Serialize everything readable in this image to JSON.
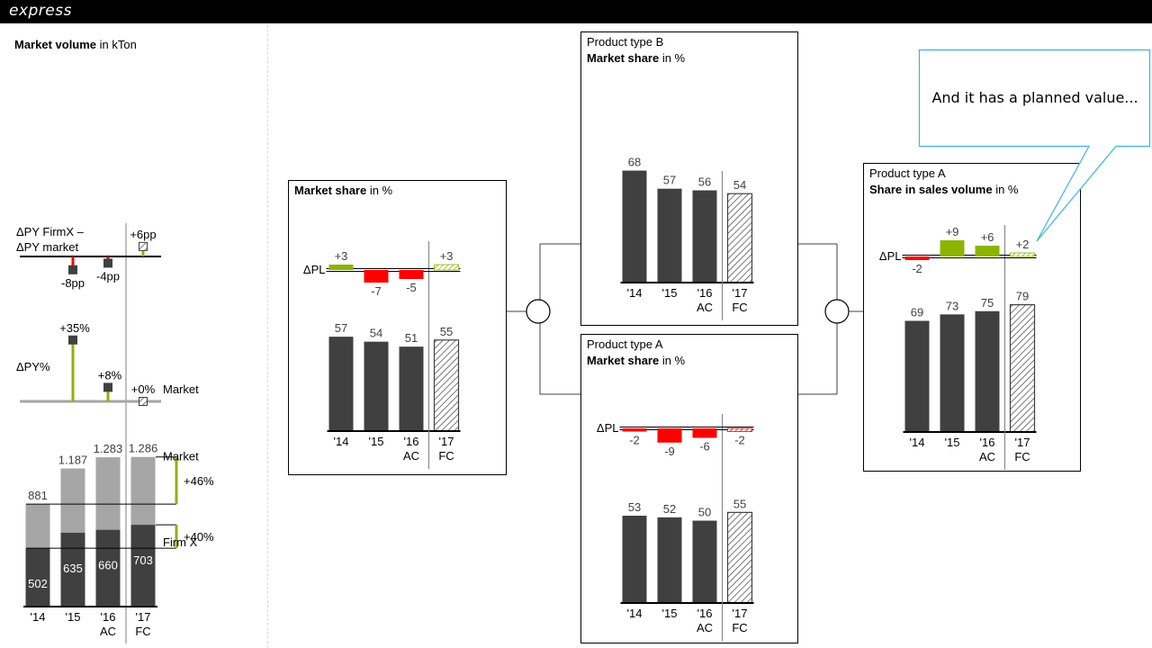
{
  "app": {
    "brand": "express",
    "callout_text": "And it has a planned value...",
    "colors": {
      "dark": "#404040",
      "light": "#a6a6a6",
      "positive": "#8cb400",
      "negative": "#ff0000",
      "frame": "#000000",
      "callout": "#3cb4dc"
    }
  },
  "chart_data": [
    {
      "id": "market_volume",
      "type": "bar",
      "title_bold": "Market volume",
      "title_rest": " in kTon",
      "categories": [
        "'14",
        "'15",
        "'16",
        "'17"
      ],
      "category_sublabels": [
        "",
        "",
        "AC",
        "FC"
      ],
      "firm_values": [
        502,
        635,
        660,
        703
      ],
      "market_values": [
        881,
        1187,
        1283,
        1286
      ],
      "firm_labels": [
        "502",
        "635",
        "660",
        "703"
      ],
      "market_labels": [
        "881",
        "1.187",
        "1.283",
        "1.286"
      ],
      "series_labels": {
        "market": "Market",
        "firm": "Firm X"
      },
      "growth_market": "+46%",
      "growth_firm": "+40%",
      "delta_diff": {
        "label_line1": "ΔPY FirmX –",
        "label_line2": "ΔPY market",
        "values": [
          -8,
          -4,
          6
        ],
        "value_labels": [
          "-8pp",
          "-4pp",
          "+6pp"
        ]
      },
      "delta_market": {
        "label": "ΔPY%",
        "series_label": "Market",
        "values": [
          35,
          8,
          0
        ],
        "value_labels": [
          "+35%",
          "+8%",
          "+0%"
        ]
      }
    },
    {
      "id": "market_share_total",
      "type": "bar",
      "title_bold": "Market share",
      "title_rest": " in %",
      "categories": [
        "'14",
        "'15",
        "'16",
        "'17"
      ],
      "category_sublabels": [
        "",
        "",
        "AC",
        "FC"
      ],
      "values": [
        57,
        54,
        51,
        55
      ],
      "delta_label": "ΔPL",
      "deltas": [
        3,
        -7,
        -5,
        3
      ],
      "delta_labels": [
        "+3",
        "-7",
        "-5",
        "+3"
      ]
    },
    {
      "id": "market_share_b",
      "type": "bar",
      "title_line1": "Product type B",
      "title_bold": "Market share",
      "title_rest": " in %",
      "categories": [
        "'14",
        "'15",
        "'16",
        "'17"
      ],
      "category_sublabels": [
        "",
        "",
        "AC",
        "FC"
      ],
      "values": [
        68,
        57,
        56,
        54
      ]
    },
    {
      "id": "market_share_a",
      "type": "bar",
      "title_line1": "Product type A",
      "title_bold": "Market share",
      "title_rest": " in %",
      "categories": [
        "'14",
        "'15",
        "'16",
        "'17"
      ],
      "category_sublabels": [
        "",
        "",
        "AC",
        "FC"
      ],
      "values": [
        53,
        52,
        50,
        55
      ],
      "delta_label": "ΔPL",
      "deltas": [
        -2,
        -9,
        -6,
        -2
      ],
      "delta_labels": [
        "-2",
        "-9",
        "-6",
        "-2"
      ]
    },
    {
      "id": "sales_share_a",
      "type": "bar",
      "title_line1": "Product type A",
      "title_bold": "Share in sales volume",
      "title_rest": " in %",
      "categories": [
        "'14",
        "'15",
        "'16",
        "'17"
      ],
      "category_sublabels": [
        "",
        "",
        "AC",
        "FC"
      ],
      "values": [
        69,
        73,
        75,
        79
      ],
      "delta_label": "ΔPL",
      "deltas": [
        -2,
        9,
        6,
        2
      ],
      "delta_labels": [
        "-2",
        "+9",
        "+6",
        "+2"
      ]
    }
  ]
}
